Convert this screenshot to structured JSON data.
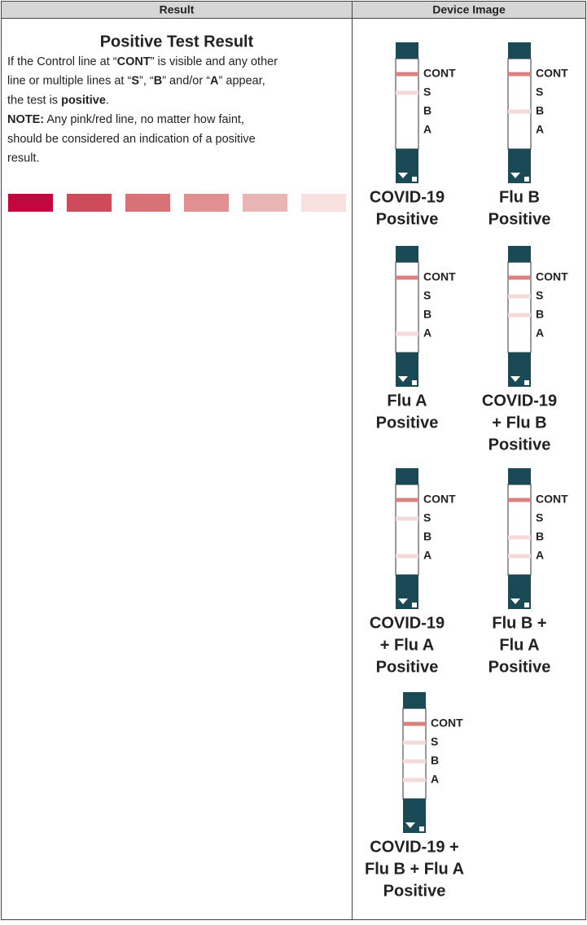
{
  "table": {
    "headers": [
      "Result",
      "Device Image"
    ],
    "title": "Positive Test Result",
    "paragraphs": [
      [
        [
          {
            "text": "If the Control line at “"
          },
          {
            "text": "CONT",
            "bold": true
          },
          {
            "text": "” is visible and any other"
          }
        ],
        [
          {
            "text": "line or multiple lines at “"
          },
          {
            "text": "S",
            "bold": true
          },
          {
            "text": "”, “"
          },
          {
            "text": "B",
            "bold": true
          },
          {
            "text": "” and/or “"
          },
          {
            "text": "A",
            "bold": true
          },
          {
            "text": "” appear,"
          }
        ],
        [
          {
            "text": "the test is "
          },
          {
            "text": "positive",
            "bold": true
          },
          {
            "text": "."
          }
        ]
      ],
      [
        [
          {
            "text": "NOTE:",
            "bold": true
          },
          {
            "text": " Any pink/red line, no matter how faint,"
          }
        ],
        [
          {
            "text": "should be considered an indication of a positive"
          }
        ],
        [
          {
            "text": "result."
          }
        ]
      ]
    ],
    "swatches": [
      "#c4063f",
      "#cd4b5a",
      "#d97277",
      "#e09090",
      "#eab5b5",
      "#f8e0df"
    ],
    "devices": [
      {
        "strip_labels": [
          "CONT",
          "S",
          "B",
          "A"
        ],
        "lines": [
          true,
          true,
          false,
          false
        ],
        "caption": [
          "COVID-19",
          "Positive"
        ]
      },
      {
        "strip_labels": [
          "CONT",
          "S",
          "B",
          "A"
        ],
        "lines": [
          true,
          false,
          true,
          false
        ],
        "caption": [
          "Flu B",
          "Positive"
        ]
      },
      {
        "strip_labels": [
          "CONT",
          "S",
          "B",
          "A"
        ],
        "lines": [
          true,
          false,
          false,
          true
        ],
        "caption": [
          "Flu A",
          "Positive"
        ]
      },
      {
        "strip_labels": [
          "CONT",
          "S",
          "B",
          "A"
        ],
        "lines": [
          true,
          true,
          true,
          false
        ],
        "caption": [
          "COVID-19",
          "+ Flu B",
          "Positive"
        ]
      },
      {
        "strip_labels": [
          "CONT",
          "S",
          "B",
          "A"
        ],
        "lines": [
          true,
          true,
          false,
          true
        ],
        "caption": [
          "COVID-19",
          "+ Flu A",
          "Positive"
        ]
      },
      {
        "strip_labels": [
          "CONT",
          "S",
          "B",
          "A"
        ],
        "lines": [
          true,
          false,
          true,
          true
        ],
        "caption": [
          "Flu B +",
          "Flu A",
          "Positive"
        ]
      },
      {
        "strip_labels": [
          "CONT",
          "S",
          "B",
          "A"
        ],
        "lines": [
          true,
          true,
          true,
          true
        ],
        "caption": [
          "COVID-19 +",
          "Flu B + Flu A",
          "Positive"
        ]
      }
    ]
  }
}
